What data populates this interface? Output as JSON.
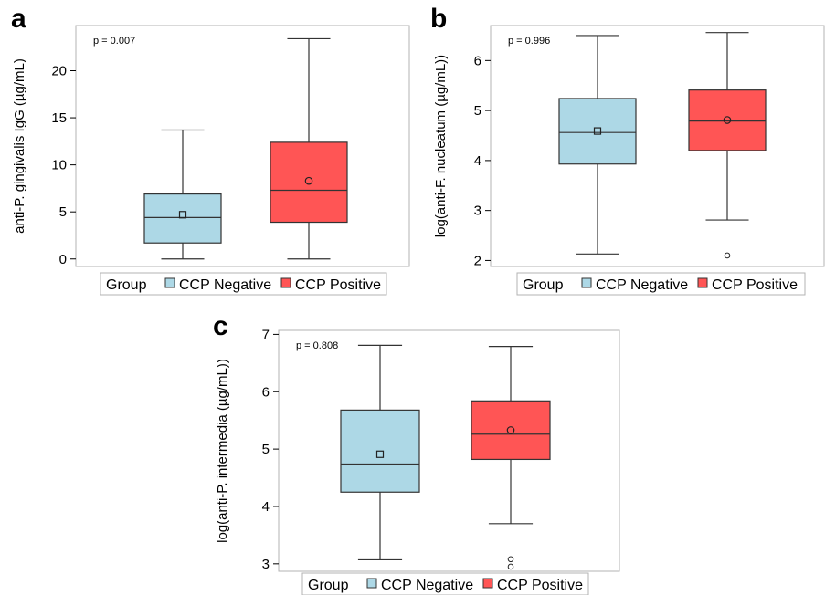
{
  "chart_data": [
    {
      "panel": "a",
      "type": "box",
      "p_value_text": "p = 0.007",
      "ylabel": "anti-P. gingivalis IgG (µg/mL)",
      "ylim": [
        -0.8,
        24.8
      ],
      "yticks": [
        0,
        5,
        10,
        15,
        20
      ],
      "legend": {
        "title": "Group",
        "entries": [
          "CCP Negative",
          "CCP Positive"
        ],
        "position": "bottom"
      },
      "series": [
        {
          "name": "CCP Negative",
          "color": "#ADD8E6",
          "mean_marker": "square",
          "whisker_low": 0,
          "q1": 1.7,
          "median": 4.4,
          "q3": 6.9,
          "whisker_high": 13.7,
          "mean": 4.7,
          "outliers": []
        },
        {
          "name": "CCP Positive",
          "color": "#FF5555",
          "mean_marker": "circle",
          "whisker_low": 0,
          "q1": 3.9,
          "median": 7.3,
          "q3": 12.4,
          "whisker_high": 23.4,
          "mean": 8.3,
          "outliers": []
        }
      ]
    },
    {
      "panel": "b",
      "type": "box",
      "p_value_text": "p = 0.996",
      "ylabel": "log(anti-F. nucleatum (µg/mL))",
      "ylim": [
        1.88,
        6.7
      ],
      "yticks": [
        2,
        3,
        4,
        5,
        6
      ],
      "legend": {
        "title": "Group",
        "entries": [
          "CCP Negative",
          "CCP Positive"
        ],
        "position": "bottom"
      },
      "series": [
        {
          "name": "CCP Negative",
          "color": "#ADD8E6",
          "mean_marker": "square",
          "whisker_low": 2.13,
          "q1": 3.93,
          "median": 4.56,
          "q3": 5.24,
          "whisker_high": 6.5,
          "mean": 4.59,
          "outliers": []
        },
        {
          "name": "CCP Positive",
          "color": "#FF5555",
          "mean_marker": "circle",
          "whisker_low": 2.81,
          "q1": 4.2,
          "median": 4.79,
          "q3": 5.41,
          "whisker_high": 6.56,
          "mean": 4.81,
          "outliers": [
            2.1
          ]
        }
      ]
    },
    {
      "panel": "c",
      "type": "box",
      "p_value_text": "p = 0.808",
      "ylabel": "log(anti-P. intermedia (µg/mL))",
      "ylim": [
        2.87,
        7.07
      ],
      "yticks": [
        3,
        4,
        5,
        6,
        7
      ],
      "legend": {
        "title": "Group",
        "entries": [
          "CCP Negative",
          "CCP Positive"
        ],
        "position": "bottom"
      },
      "series": [
        {
          "name": "CCP Negative",
          "color": "#ADD8E6",
          "mean_marker": "square",
          "whisker_low": 3.07,
          "q1": 4.25,
          "median": 4.74,
          "q3": 5.68,
          "whisker_high": 6.81,
          "mean": 4.91,
          "outliers": []
        },
        {
          "name": "CCP Positive",
          "color": "#FF5555",
          "mean_marker": "circle",
          "whisker_low": 3.7,
          "q1": 4.82,
          "median": 5.26,
          "q3": 5.84,
          "whisker_high": 6.79,
          "mean": 5.33,
          "outliers": [
            3.08,
            2.95
          ]
        }
      ]
    }
  ]
}
